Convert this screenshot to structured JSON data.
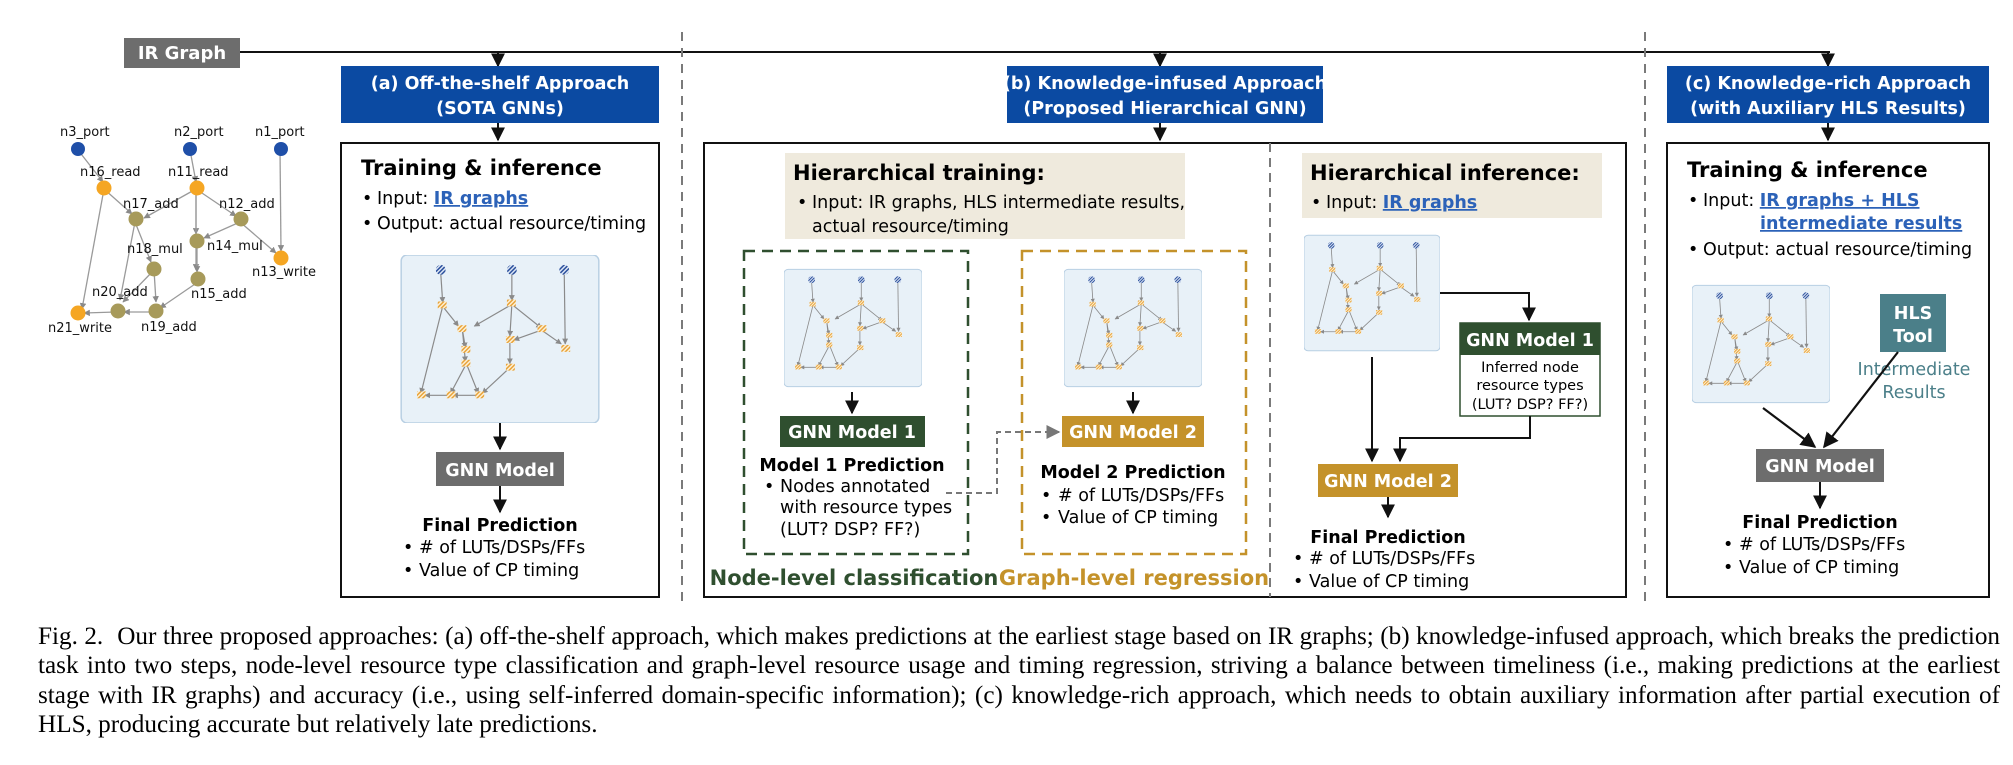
{
  "ir_graph_label": "IR Graph",
  "ir_graph_nodes": [
    {
      "id": "n3_port",
      "type": "port"
    },
    {
      "id": "n2_port",
      "type": "port"
    },
    {
      "id": "n1_port",
      "type": "port"
    },
    {
      "id": "n16_read",
      "type": "io"
    },
    {
      "id": "n11_read",
      "type": "io"
    },
    {
      "id": "n17_add",
      "type": "op"
    },
    {
      "id": "n12_add",
      "type": "op"
    },
    {
      "id": "n18_mul",
      "type": "op"
    },
    {
      "id": "n14_mul",
      "type": "op"
    },
    {
      "id": "n13_write",
      "type": "io"
    },
    {
      "id": "n15_add",
      "type": "op"
    },
    {
      "id": "n20_add",
      "type": "op"
    },
    {
      "id": "n19_add",
      "type": "op"
    },
    {
      "id": "n21_write",
      "type": "io"
    }
  ],
  "node_colors": {
    "port": "#1f4fa8",
    "io": "#f5a623",
    "op": "#a79a5a"
  },
  "panel_a": {
    "header_line1": "(a) Off-the-shelf Approach",
    "header_line2": "(SOTA GNNs)",
    "title": "Training & inference",
    "bullet_input_prefix": "Input: ",
    "bullet_input_link": "IR graphs",
    "bullet_output": "Output: actual resource/timing",
    "model_label": "GNN Model",
    "final_title": "Final Prediction",
    "final_b1": "# of LUTs/DSPs/FFs",
    "final_b2": "Value of CP timing"
  },
  "panel_b": {
    "header_line1": "(b) Knowledge-infused Approach",
    "header_line2": "(Proposed Hierarchical GNN)",
    "training_title": "Hierarchical training:",
    "training_b1": "Input: IR graphs, HLS intermediate results,",
    "training_b1_cont": "actual resource/timing",
    "model1_label": "GNN Model 1",
    "model1_pred_title": "Model 1 Prediction",
    "model1_b1": "Nodes annotated",
    "model1_b1_l2": "with resource types",
    "model1_b1_l3": "(LUT? DSP? FF?)",
    "model2_label": "GNN Model 2",
    "model2_pred_title": "Model 2 Prediction",
    "model2_b1": "# of LUTs/DSPs/FFs",
    "model2_b2": "Value of CP timing",
    "node_level_label": "Node-level classification",
    "graph_level_label": "Graph-level regression",
    "inference_title": "Hierarchical inference:",
    "inference_input_prefix": "Input: ",
    "inference_input_link": "IR graphs",
    "inf_model1_label": "GNN Model 1",
    "inf_model1_sub1": "Inferred node",
    "inf_model1_sub2": "resource types",
    "inf_model1_sub3": "(LUT? DSP? FF?)",
    "inf_model2_label": "GNN Model 2",
    "final_title": "Final Prediction",
    "final_b1": "# of LUTs/DSPs/FFs",
    "final_b2": "Value of CP timing"
  },
  "panel_c": {
    "header_line1": "(c) Knowledge-rich Approach",
    "header_line2": "(with Auxiliary HLS Results)",
    "title": "Training & inference",
    "bullet_input_prefix": "Input: ",
    "bullet_input_link_l1": "IR graphs + HLS",
    "bullet_input_link_l2": "intermediate results",
    "bullet_output": "Output: actual resource/timing",
    "hls_tool_l1": "HLS",
    "hls_tool_l2": "Tool",
    "intermediate_l1": "Intermediate",
    "intermediate_l2": "Results",
    "model_label": "GNN Model",
    "final_title": "Final Prediction",
    "final_b1": "# of LUTs/DSPs/FFs",
    "final_b2": "Value of CP timing"
  },
  "colors": {
    "header_blue": "#0b4aa2",
    "gray_box": "#6d6d6d",
    "dark_green": "#2f4f2f",
    "gold": "#c4922a",
    "beige": "#efeadd",
    "link_blue": "#2c62b8",
    "hls_teal": "#4b7f89",
    "thumb_bg": "#e8f1f8"
  },
  "caption": {
    "label": "Fig. 2.",
    "text": "Our three proposed approaches: (a) off-the-shelf approach, which makes predictions at the earliest stage based on IR graphs; (b) knowledge-infused approach, which breaks the prediction task into two steps, node-level resource type classification and graph-level resource usage and timing regression, striving a balance between timeliness (i.e., making predictions at the earliest stage with IR graphs) and accuracy (i.e., using self-inferred domain-specific information); (c) knowledge-rich approach, which needs to obtain auxiliary information after partial execution of HLS, producing accurate but relatively late predictions."
  }
}
